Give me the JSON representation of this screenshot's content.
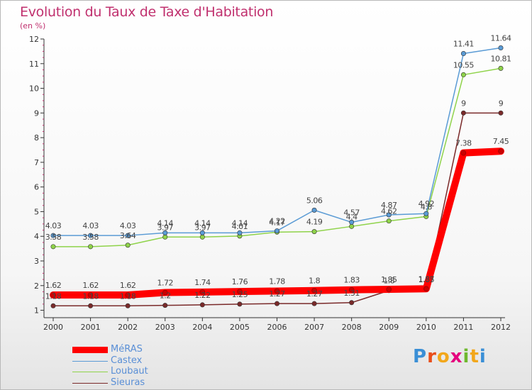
{
  "header": {
    "title": "Evolution du Taux de Taxe d'Habitation",
    "unit": "(en %)"
  },
  "brand": {
    "letters": [
      "P",
      "r",
      "o",
      "x",
      "i",
      "t",
      "i"
    ],
    "colors": [
      "#3a8fd6",
      "#e94e1b",
      "#f2a71b",
      "#e5007e",
      "#6fb82e",
      "#f2a71b",
      "#3a8fd6"
    ]
  },
  "chart_data": {
    "type": "line",
    "title": "Evolution du Taux de Taxe d'Habitation",
    "ylabel": "(en %)",
    "xlabel": "",
    "x": [
      "2000",
      "2001",
      "2002",
      "2003",
      "2004",
      "2005",
      "2006",
      "2007",
      "2008",
      "2009",
      "2010",
      "2011",
      "2012"
    ],
    "ylim": [
      0.7,
      12
    ],
    "yticks": [
      1,
      2,
      3,
      4,
      5,
      6,
      7,
      8,
      9,
      10,
      11,
      12
    ],
    "grid": false,
    "legend": "bottom-left",
    "series": [
      {
        "name": "MéRAS",
        "color": "#ff0000",
        "values": [
          1.62,
          1.62,
          1.62,
          1.72,
          1.74,
          1.76,
          1.78,
          1.8,
          1.83,
          1.85,
          1.87,
          7.38,
          7.45
        ],
        "labels": [
          "1.62",
          "1.62",
          "1.62",
          "1.72",
          "1.74",
          "1.76",
          "1.78",
          "1.8",
          "1.83",
          "1.85",
          "1.87",
          "7.38",
          "7.45"
        ]
      },
      {
        "name": "Castex",
        "color": "#5a9bd5",
        "values": [
          4.03,
          4.03,
          4.03,
          4.14,
          4.14,
          4.14,
          4.22,
          5.06,
          4.57,
          4.87,
          4.92,
          11.41,
          11.64
        ],
        "labels": [
          "4.03",
          "4.03",
          "4.03",
          "4.14",
          "4.14",
          "4.14",
          "4.22",
          "5.06",
          "4.57",
          "4.87",
          "4.92",
          "11.41",
          "11.64"
        ]
      },
      {
        "name": "Loubaut",
        "color": "#8fd34a",
        "values": [
          3.58,
          3.58,
          3.64,
          3.97,
          3.97,
          4.01,
          4.17,
          4.19,
          4.4,
          4.62,
          4.8,
          10.55,
          10.81
        ],
        "labels": [
          "3.58",
          "3.58",
          "3.64",
          "3.97",
          "3.97",
          "4.01",
          "4.17",
          "4.19",
          "4.4",
          "4.62",
          "4.8",
          "10.55",
          "10.81"
        ]
      },
      {
        "name": "Sieuras",
        "color": "#7a2a2a",
        "values": [
          1.18,
          1.18,
          1.18,
          1.2,
          1.22,
          1.25,
          1.27,
          1.27,
          1.31,
          1.8,
          1.85,
          9,
          9
        ],
        "labels": [
          "1.18",
          "1.18",
          "1.18",
          "1.2",
          "1.22",
          "1.25",
          "1.27",
          "1.27",
          "1.31",
          "1.8",
          "1.85",
          "9",
          "9"
        ]
      }
    ]
  }
}
